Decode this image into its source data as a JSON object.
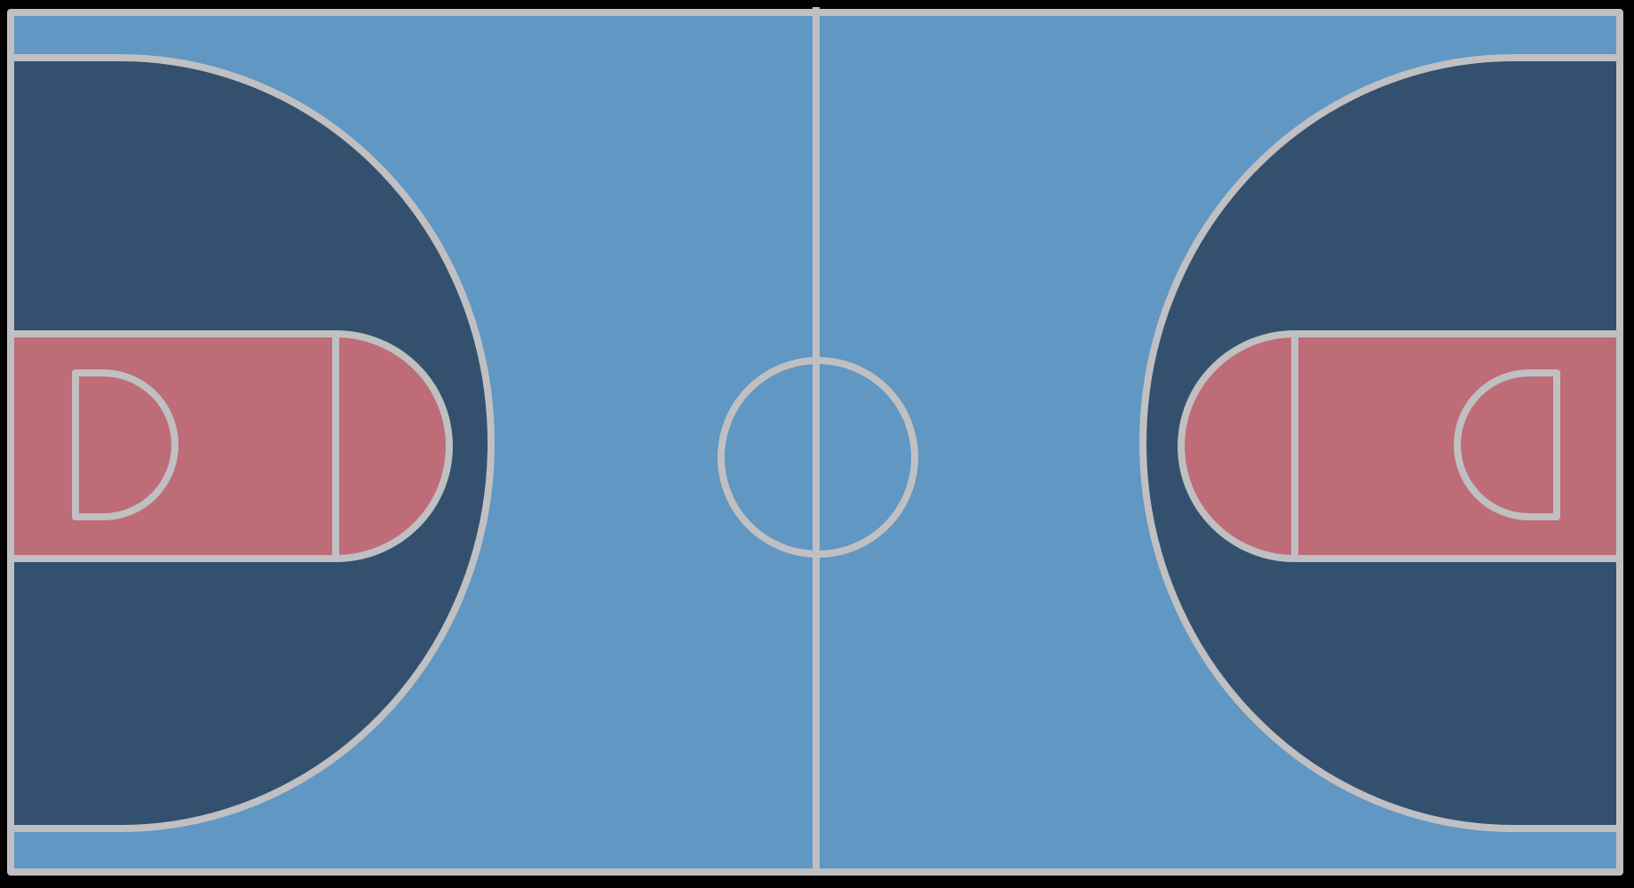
{
  "court": {
    "type": "basketball-court-top-view",
    "colors": {
      "background": "#000000",
      "court_floor": "#6097C3",
      "three_point_area": "#33516E",
      "paint": "#BE6C78",
      "lines": "#C0C0C2"
    }
  }
}
